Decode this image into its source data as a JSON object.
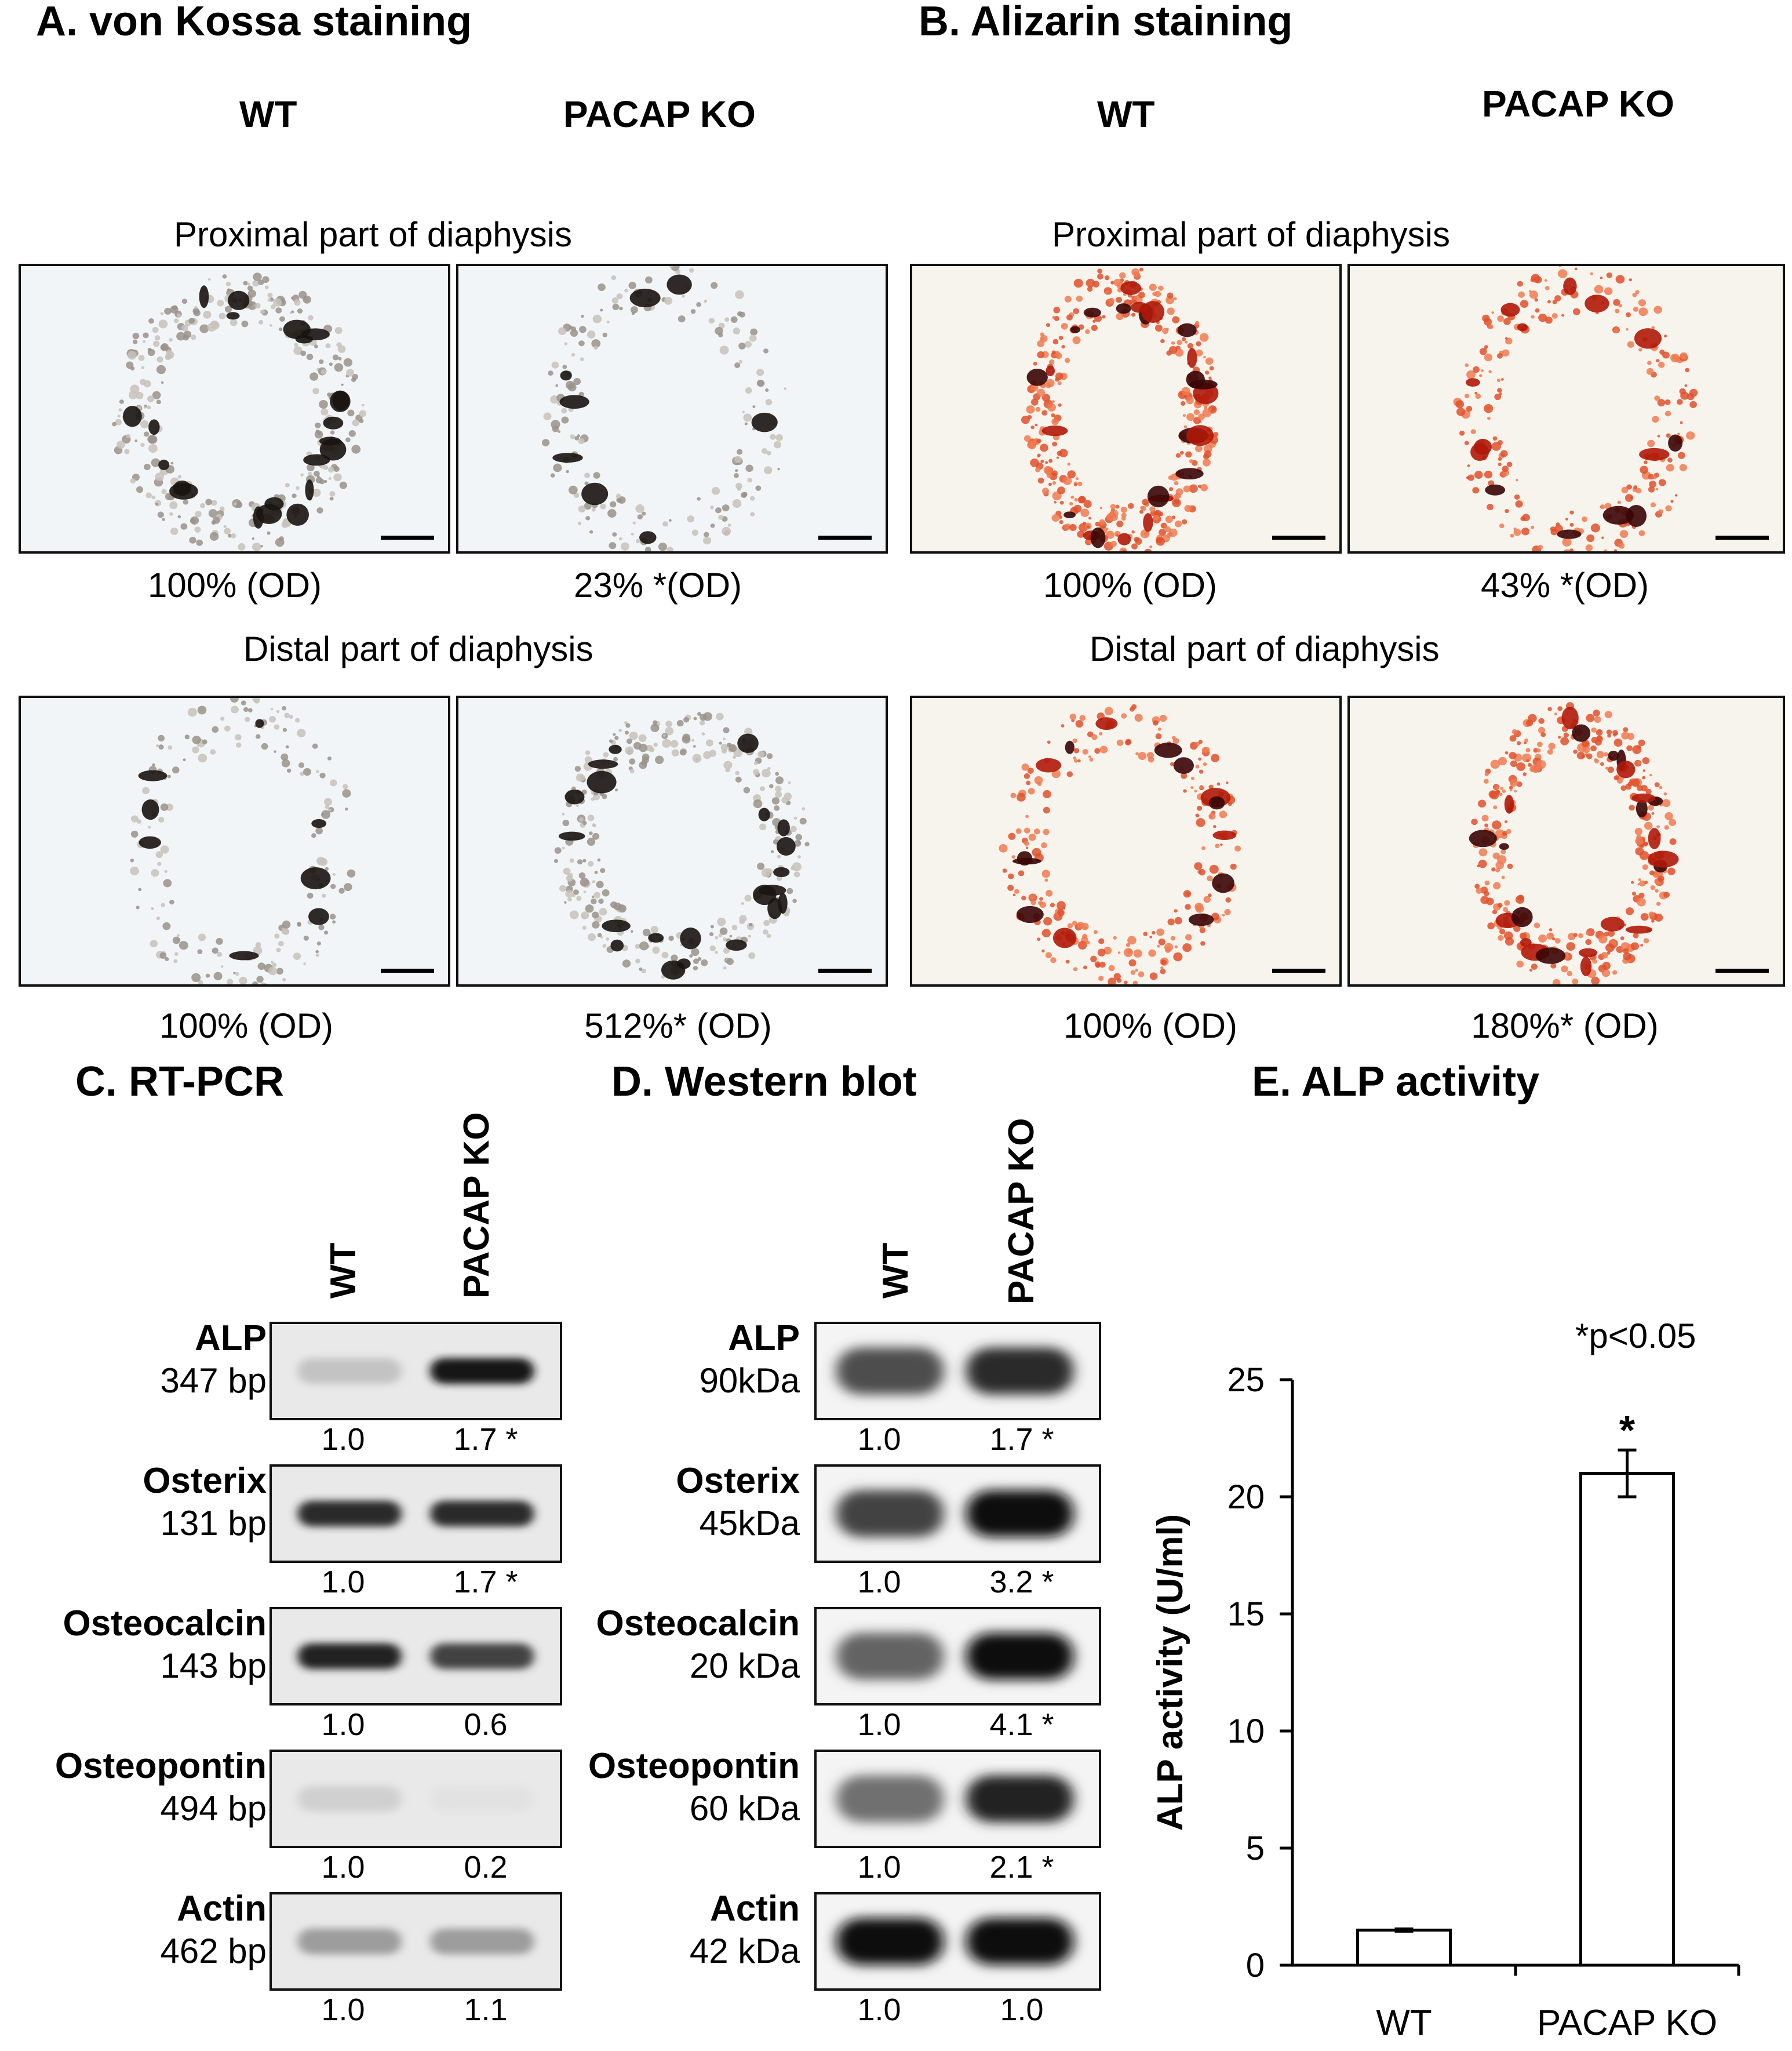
{
  "panelA": {
    "title": "A. von Kossa staining",
    "col_wt": "WT",
    "col_ko": "PACAP KO",
    "proximal_title": "Proximal part of diaphysis",
    "distal_title": "Distal part of diaphysis",
    "prox_wt_caption": "100% (OD)",
    "prox_ko_caption": "23% *(OD)",
    "dist_wt_caption": "100% (OD)",
    "dist_ko_caption": "512%* (OD)"
  },
  "panelB": {
    "title": "B. Alizarin staining",
    "col_wt": "WT",
    "col_ko": "PACAP KO",
    "proximal_title": "Proximal part of diaphysis",
    "distal_title": "Distal part of diaphysis",
    "prox_wt_caption": "100% (OD)",
    "prox_ko_caption": "43% *(OD)",
    "dist_wt_caption": "100% (OD)",
    "dist_ko_caption": "180%* (OD)"
  },
  "panelC": {
    "title": "C. RT-PCR",
    "lane_wt": "WT",
    "lane_ko": "PACAP KO",
    "rows": [
      {
        "gene": "ALP",
        "size": "347 bp",
        "wt": "1.0",
        "ko": "1.7 *",
        "wt_int": 0.18,
        "ko_int": 0.95
      },
      {
        "gene": "Osterix",
        "size": "131 bp",
        "wt": "1.0",
        "ko": "1.7 *",
        "wt_int": 0.85,
        "ko_int": 0.85
      },
      {
        "gene": "Osteocalcin",
        "size": "143 bp",
        "wt": "1.0",
        "ko": "0.6",
        "wt_int": 0.9,
        "ko_int": 0.75
      },
      {
        "gene": "Osteopontin",
        "size": "494 bp",
        "wt": "1.0",
        "ko": "0.2",
        "wt_int": 0.12,
        "ko_int": 0.04
      },
      {
        "gene": "Actin",
        "size": "462 bp",
        "wt": "1.0",
        "ko": "1.1",
        "wt_int": 0.35,
        "ko_int": 0.35
      }
    ]
  },
  "panelD": {
    "title": "D. Western blot",
    "lane_wt": "WT",
    "lane_ko": "PACAP KO",
    "rows": [
      {
        "protein": "ALP",
        "size": "90kDa",
        "wt": "1.0",
        "ko": "1.7 *",
        "wt_int": 0.7,
        "ko_int": 0.85
      },
      {
        "protein": "Osterix",
        "size": "45kDa",
        "wt": "1.0",
        "ko": "3.2 *",
        "wt_int": 0.75,
        "ko_int": 1.0
      },
      {
        "protein": "Osteocalcin",
        "size": "20 kDa",
        "wt": "1.0",
        "ko": "4.1 *",
        "wt_int": 0.6,
        "ko_int": 1.0
      },
      {
        "protein": "Osteopontin",
        "size": "60 kDa",
        "wt": "1.0",
        "ko": "2.1 *",
        "wt_int": 0.55,
        "ko_int": 0.9
      },
      {
        "protein": "Actin",
        "size": "42 kDa",
        "wt": "1.0",
        "ko": "1.0",
        "wt_int": 1.0,
        "ko_int": 1.0
      }
    ]
  },
  "chart_data": {
    "type": "bar",
    "title": "E. ALP activity",
    "annotation": "*p<0.05",
    "ylabel": "ALP activity (U/ml)",
    "xlabel": "",
    "categories": [
      "WT",
      "PACAP KO"
    ],
    "values": [
      1.5,
      21.0
    ],
    "errors": [
      0.05,
      1.0
    ],
    "significance": [
      "",
      "*"
    ],
    "ylim": [
      0,
      25
    ],
    "yticks": [
      0,
      5,
      10,
      15,
      20,
      25
    ],
    "ytick_labels": [
      "0",
      "5",
      "10",
      "15",
      "20",
      "25"
    ],
    "bar_fill": "#ffffff",
    "grid": false
  },
  "colors": {
    "vonkossa_bg": "#f2f5f8",
    "vonkossa_stain": "#1a1410",
    "alizarin_bg": "#f7f4ee",
    "alizarin_stain": "#b01808",
    "alizarin_dark": "#3a0606"
  }
}
